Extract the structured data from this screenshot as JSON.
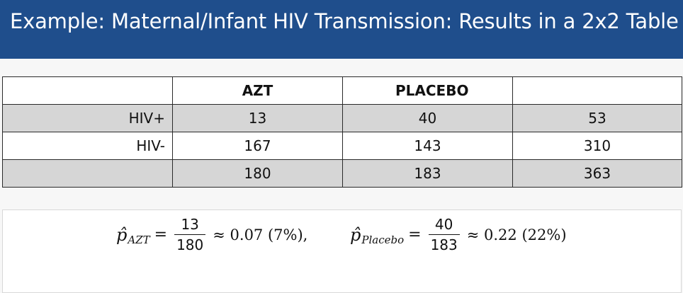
{
  "slide": {
    "title": "Example: Maternal/Infant HIV Transmission: Results in a 2x2 Table"
  },
  "table": {
    "headers": [
      "",
      "AZT",
      "PLACEBO",
      ""
    ],
    "rows": [
      [
        "HIV+",
        "13",
        "40",
        "53"
      ],
      [
        "HIV-",
        "167",
        "143",
        "310"
      ],
      [
        "",
        "180",
        "183",
        "363"
      ]
    ]
  },
  "formulas": {
    "azt": {
      "symbol": "p̂",
      "subscript": "AZT",
      "equals": "=",
      "numerator": "13",
      "denominator": "180",
      "result": "≈ 0.07 (7%),"
    },
    "placebo": {
      "symbol": "p̂",
      "subscript": "Placebo",
      "equals": "=",
      "numerator": "40",
      "denominator": "183",
      "result": "≈ 0.22 (22%)"
    }
  },
  "colors": {
    "header_bg": "#1f4e8c",
    "row_gray": "#d6d6d6"
  }
}
